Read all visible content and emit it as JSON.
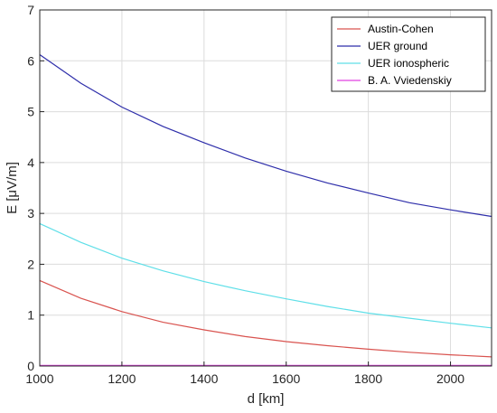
{
  "chart_data": {
    "type": "line",
    "title": "",
    "xlabel": "d [km]",
    "ylabel": "E [μV/m]",
    "xlim": [
      1000,
      2100
    ],
    "ylim": [
      0,
      7
    ],
    "xticks": [
      1000,
      1200,
      1400,
      1600,
      1800,
      2000
    ],
    "yticks": [
      0,
      1,
      2,
      3,
      4,
      5,
      6,
      7
    ],
    "grid": true,
    "legend_position": "top-right",
    "x": [
      1000,
      1100,
      1200,
      1300,
      1400,
      1500,
      1600,
      1700,
      1800,
      1900,
      2000,
      2100
    ],
    "series": [
      {
        "name": "Austin-Cohen",
        "color": "#d9534f",
        "values": [
          1.68,
          1.33,
          1.07,
          0.86,
          0.71,
          0.58,
          0.48,
          0.4,
          0.33,
          0.27,
          0.22,
          0.18
        ]
      },
      {
        "name": "UER ground",
        "color": "#2e2eaa",
        "values": [
          6.12,
          5.56,
          5.09,
          4.71,
          4.39,
          4.09,
          3.83,
          3.6,
          3.4,
          3.21,
          3.07,
          2.94
        ]
      },
      {
        "name": "UER ionospheric",
        "color": "#5fdfe8",
        "values": [
          2.8,
          2.43,
          2.12,
          1.87,
          1.66,
          1.48,
          1.32,
          1.17,
          1.04,
          0.94,
          0.84,
          0.75
        ]
      },
      {
        "name": "B. A. Vviedenskiy",
        "color": "#e040e0",
        "values": [
          0.01,
          0.01,
          0.01,
          0.01,
          0.01,
          0.01,
          0.01,
          0.01,
          0.01,
          0.01,
          0.01,
          0.01
        ]
      }
    ]
  }
}
